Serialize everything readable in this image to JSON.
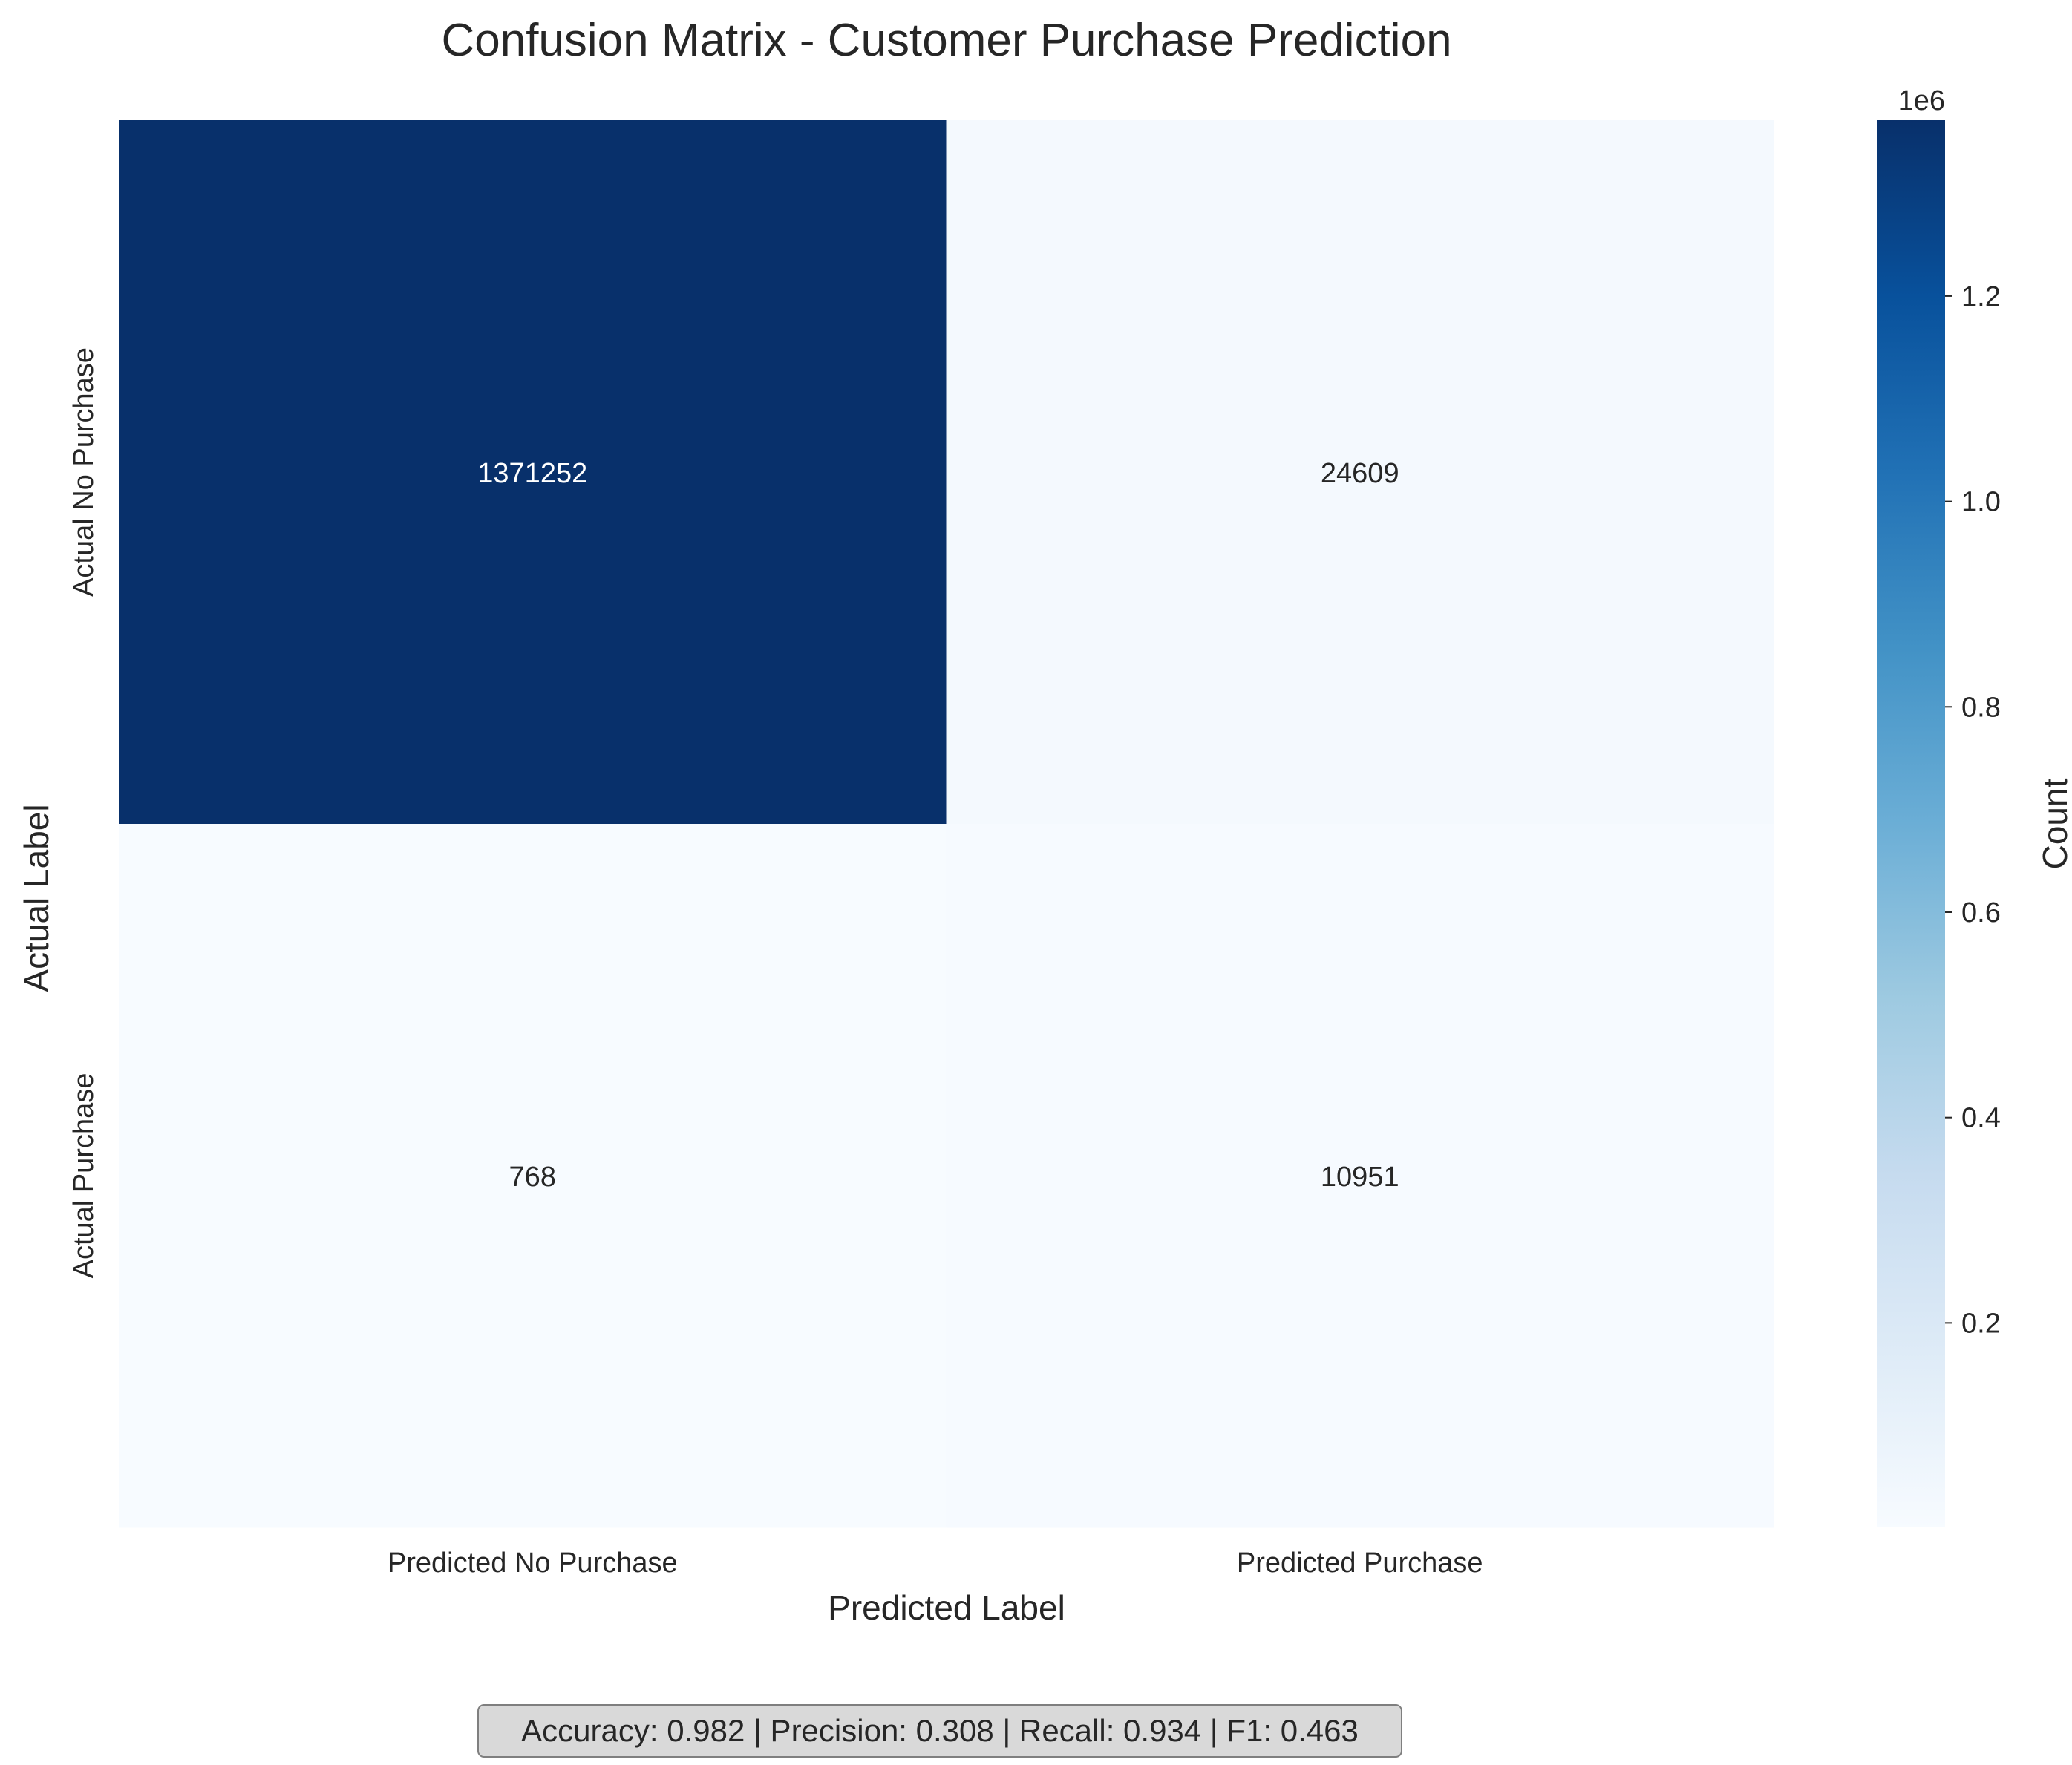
{
  "chart_data": {
    "type": "heatmap",
    "title": "Confusion Matrix - Customer Purchase Prediction",
    "xlabel": "Predicted Label",
    "ylabel": "Actual Label",
    "x_categories": [
      "Predicted No Purchase",
      "Predicted Purchase"
    ],
    "y_categories": [
      "Actual No Purchase",
      "Actual Purchase"
    ],
    "values": [
      [
        1371252,
        24609
      ],
      [
        768,
        10951
      ]
    ],
    "colormap": "Blues",
    "colorbar": {
      "label": "Count",
      "offset_text": "1e6",
      "range": [
        768,
        1371252
      ],
      "ticks": [
        0.2,
        0.4,
        0.6,
        0.8,
        1.0,
        1.2
      ],
      "tick_labels": [
        "0.2",
        "0.4",
        "0.6",
        "0.8",
        "1.0",
        "1.2"
      ]
    }
  },
  "metrics_text": "Accuracy: 0.982 | Precision: 0.308 | Recall: 0.934 | F1: 0.463",
  "colors": {
    "text": "#262626",
    "metrics_box_fill": "#d9d9d9",
    "metrics_box_stroke": "#7f7f7f"
  }
}
